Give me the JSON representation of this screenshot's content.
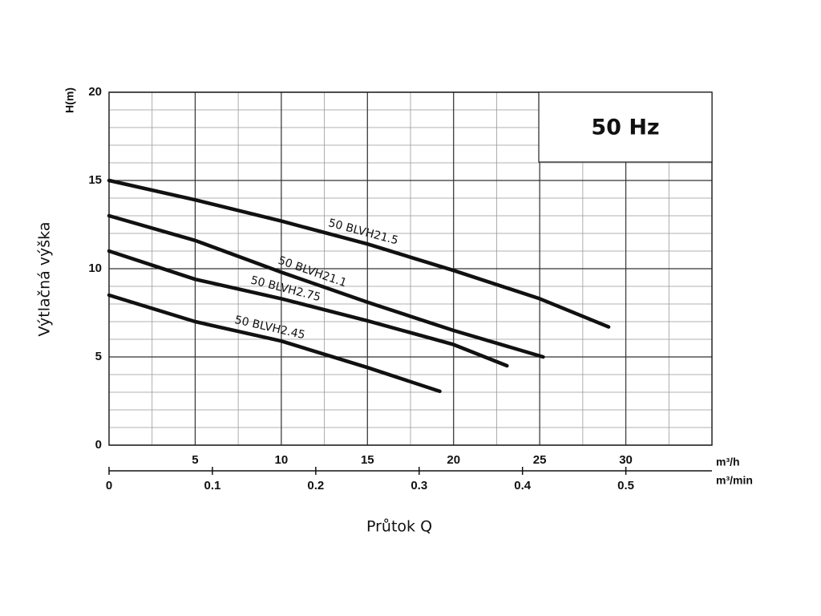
{
  "chart_data": {
    "type": "line",
    "x_label": "Průtok Q",
    "y_label": "Výtlačná výška",
    "y_unit": "H(m)",
    "x_unit": "m³/h",
    "x2_unit": "m³/min",
    "annotation": "50 Hz",
    "xlim": [
      0,
      35
    ],
    "xticks": [
      5,
      10,
      15,
      20,
      25,
      30
    ],
    "x2lim": [
      0,
      0.5833
    ],
    "x2ticks": [
      0,
      0.1,
      0.2,
      0.3,
      0.4,
      0.5
    ],
    "ylim": [
      0,
      20
    ],
    "yticks": [
      0,
      5,
      10,
      15,
      20
    ],
    "grid": true,
    "series": [
      {
        "name": "50 BLVH21.5",
        "color": "#111111",
        "x": [
          0,
          5,
          10,
          15,
          20,
          25,
          29
        ],
        "values": [
          15,
          13.9,
          12.7,
          11.4,
          9.9,
          8.3,
          6.7
        ]
      },
      {
        "name": "50 BLVH21.1",
        "color": "#111111",
        "x": [
          0,
          5,
          10,
          15,
          20,
          25.2
        ],
        "values": [
          13,
          11.6,
          9.8,
          8.1,
          6.5,
          5
        ]
      },
      {
        "name": "50 BLVH2.75",
        "color": "#111111",
        "x": [
          0,
          5,
          10,
          15,
          20,
          23.1
        ],
        "values": [
          11,
          9.4,
          8.3,
          7.05,
          5.7,
          4.5
        ]
      },
      {
        "name": "50 BLVH2.45",
        "color": "#111111",
        "x": [
          0,
          5,
          10,
          15,
          19.2
        ],
        "values": [
          8.5,
          7,
          5.9,
          4.4,
          3.05
        ]
      }
    ]
  }
}
